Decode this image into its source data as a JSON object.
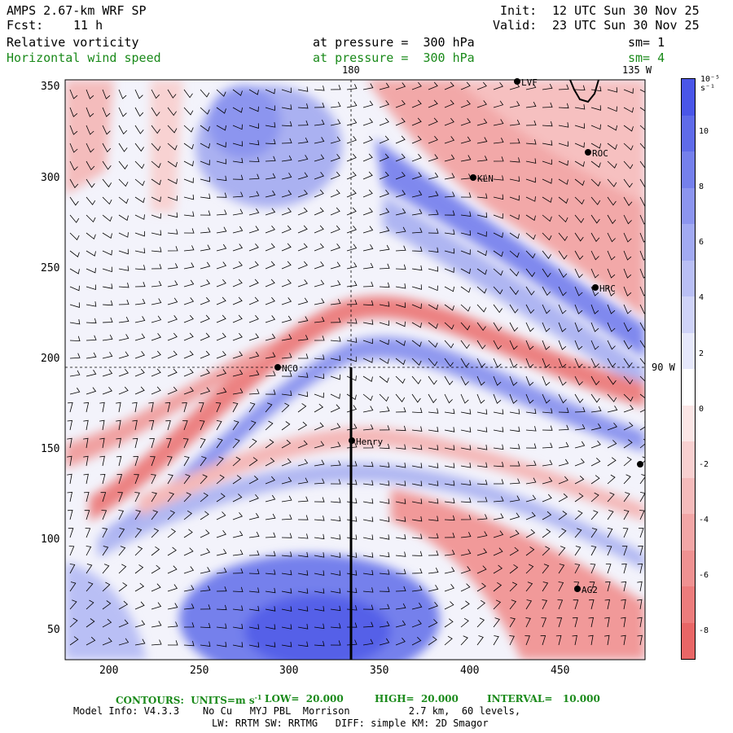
{
  "header": {
    "model": "AMPS 2.67-km WRF SP",
    "init_label": "Init:",
    "init_value": "12 UTC Sun 30 Nov 25",
    "fcst_label": "Fcst:",
    "fcst_value": "11 h",
    "valid_label": "Valid:",
    "valid_value": "23 UTC Sun 30 Nov 25",
    "field1": "Relative vorticity",
    "field1_level": "at pressure =  300 hPa",
    "field1_sm": "sm= 1",
    "field2": "Horizontal wind speed",
    "field2_level": "at pressure =  300 hPa",
    "field2_sm": "sm= 4"
  },
  "map": {
    "meridian_180": "180",
    "meridian_135w": "135 W",
    "meridian_90w": "90 W",
    "x_ticks": [
      "200",
      "250",
      "300",
      "350",
      "400",
      "450"
    ],
    "y_ticks": [
      "350",
      "300",
      "250",
      "200",
      "150",
      "100",
      "50"
    ],
    "stations": [
      {
        "name": "LVF"
      },
      {
        "name": "ROC"
      },
      {
        "name": "KLN"
      },
      {
        "name": "HRC"
      },
      {
        "name": "NCO"
      },
      {
        "name": "Henry"
      },
      {
        "name": "AG2"
      },
      {
        "name": ""
      }
    ]
  },
  "colorbar": {
    "units": "10⁻⁵ s⁻¹",
    "labels": [
      "10",
      "8",
      "6",
      "4",
      "2",
      "0",
      "-2",
      "-4",
      "-6",
      "-8"
    ],
    "colors": [
      "#4a56e8",
      "#5f6be9",
      "#7580ec",
      "#8c95ef",
      "#a2aaf2",
      "#b9bff5",
      "#cfd3f8",
      "#e6e8fb",
      "#ffffff",
      "#fbe6e6",
      "#f8d0d0",
      "#f5bbbb",
      "#f2a6a6",
      "#ef9191",
      "#ec7c7c",
      "#e86666"
    ]
  },
  "footer": {
    "contours": "CONTOURS:  UNITS=m s",
    "contours_low": "LOW=  20.000",
    "contours_high": "HIGH=  20.000",
    "contours_interval": "INTERVAL=   10.000",
    "info1": "Model Info: V4.3.3    No Cu   MYJ PBL  Morrison          2.7 km,  60 levels,",
    "info2": "LW: RRTM SW: RRTMG   DIFF: simple KM: 2D Smagor"
  }
}
